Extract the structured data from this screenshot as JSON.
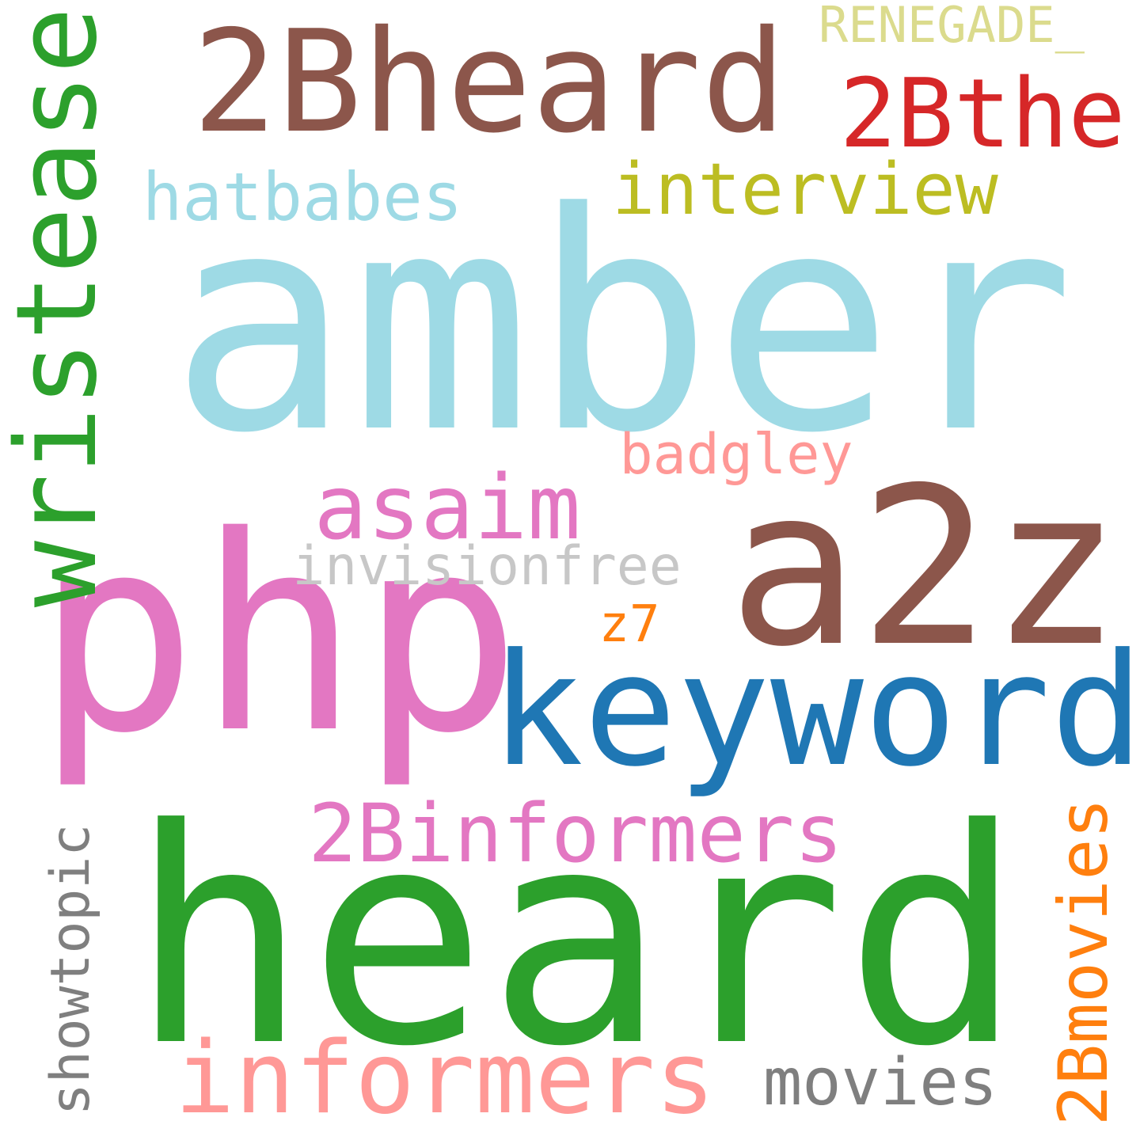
{
  "words": [
    {
      "text": "amber",
      "color": "#9edae5"
    },
    {
      "text": "php",
      "color": "#e377c2"
    },
    {
      "text": "a2z",
      "color": "#8c564b"
    },
    {
      "text": "heard",
      "color": "#2ca02c"
    },
    {
      "text": "keyword",
      "color": "#1f77b4"
    },
    {
      "text": "2Bheard",
      "color": "#8c564b"
    },
    {
      "text": "wristease",
      "color": "#2ca02c"
    },
    {
      "text": "2Bthe",
      "color": "#d62728"
    },
    {
      "text": "hatbabes",
      "color": "#9edae5"
    },
    {
      "text": "interview",
      "color": "#bcbd22"
    },
    {
      "text": "asaim",
      "color": "#e377c2"
    },
    {
      "text": "badgley",
      "color": "#ff9896"
    },
    {
      "text": "invisionfree",
      "color": "#c7c7c7"
    },
    {
      "text": "z7",
      "color": "#ff7f0e"
    },
    {
      "text": "2Binformers",
      "color": "#e377c2"
    },
    {
      "text": "informers",
      "color": "#ff9896"
    },
    {
      "text": "movies",
      "color": "#7f7f7f"
    },
    {
      "text": "showtopic",
      "color": "#7f7f7f"
    },
    {
      "text": "2Bmovies",
      "color": "#ff7f0e"
    },
    {
      "text": "RENEGADE_",
      "color": "#dbdb8d"
    }
  ]
}
